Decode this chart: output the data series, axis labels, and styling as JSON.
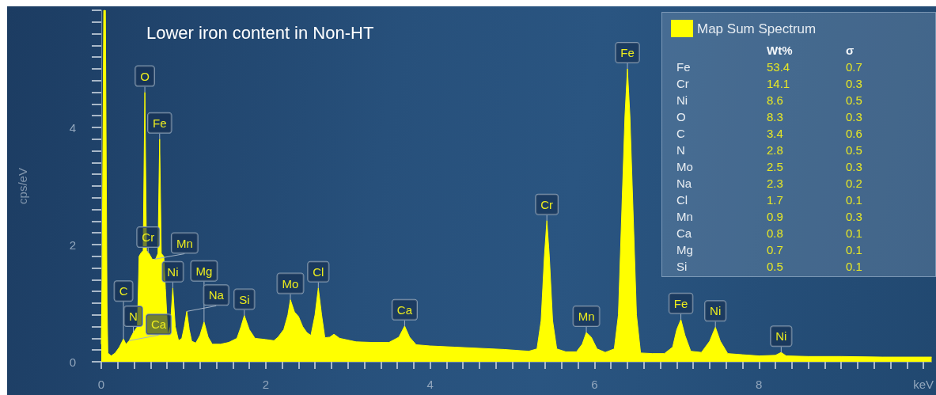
{
  "chart_data": {
    "type": "area",
    "title": "Lower iron content in Non-HT",
    "ylabel": "cps/eV",
    "series": [
      {
        "name": "Map Sum Spectrum",
        "color": "#ffff00",
        "x": [
          0,
          0.01,
          0.03,
          0.05,
          0.07,
          0.08,
          0.12,
          0.17,
          0.22,
          0.27,
          0.3,
          0.34,
          0.39,
          0.44,
          0.46,
          0.48,
          0.51,
          0.53,
          0.55,
          0.58,
          0.62,
          0.66,
          0.69,
          0.71,
          0.73,
          0.76,
          0.78,
          0.81,
          0.84,
          0.87,
          0.9,
          0.94,
          0.98,
          1.01,
          1.04,
          1.07,
          1.1,
          1.15,
          1.2,
          1.25,
          1.3,
          1.35,
          1.45,
          1.55,
          1.65,
          1.7,
          1.74,
          1.8,
          1.87,
          2,
          2.1,
          2.15,
          2.22,
          2.27,
          2.3,
          2.35,
          2.4,
          2.45,
          2.5,
          2.55,
          2.6,
          2.64,
          2.68,
          2.72,
          2.78,
          2.83,
          2.9,
          3.1,
          3.3,
          3.5,
          3.62,
          3.69,
          3.75,
          3.83,
          4,
          4.3,
          4.6,
          4.9,
          5.2,
          5.3,
          5.35,
          5.39,
          5.42,
          5.45,
          5.49,
          5.54,
          5.65,
          5.78,
          5.85,
          5.9,
          5.96,
          6.03,
          6.13,
          6.24,
          6.29,
          6.33,
          6.37,
          6.4,
          6.43,
          6.47,
          6.51,
          6.56,
          6.7,
          6.85,
          6.95,
          7,
          7.05,
          7.1,
          7.17,
          7.3,
          7.4,
          7.47,
          7.53,
          7.62,
          7.8,
          8,
          8.2,
          8.27,
          8.33,
          8.6,
          9,
          9.5,
          10,
          10.1
        ],
        "values": [
          0.3,
          1.4,
          6,
          6,
          1,
          0.15,
          0.1,
          0.15,
          0.25,
          0.39,
          0.3,
          0.36,
          0.5,
          0.6,
          1.8,
          1.85,
          1.9,
          4.6,
          1.9,
          1.85,
          1.75,
          1.75,
          1.85,
          3.8,
          1.85,
          1.8,
          1.25,
          0.45,
          0.6,
          1.26,
          0.6,
          0.36,
          0.4,
          0.6,
          0.86,
          0.55,
          0.35,
          0.32,
          0.45,
          0.68,
          0.42,
          0.3,
          0.3,
          0.33,
          0.4,
          0.6,
          0.79,
          0.55,
          0.4,
          0.38,
          0.36,
          0.42,
          0.55,
          0.8,
          1.06,
          0.85,
          0.77,
          0.6,
          0.5,
          0.45,
          0.8,
          1.26,
          0.8,
          0.41,
          0.42,
          0.47,
          0.4,
          0.34,
          0.33,
          0.33,
          0.42,
          0.61,
          0.42,
          0.29,
          0.27,
          0.25,
          0.23,
          0.21,
          0.18,
          0.22,
          0.7,
          1.8,
          2.41,
          1.8,
          0.7,
          0.22,
          0.17,
          0.17,
          0.3,
          0.5,
          0.42,
          0.22,
          0.16,
          0.22,
          0.8,
          2.5,
          4.2,
          5,
          4.2,
          2.5,
          0.8,
          0.15,
          0.14,
          0.14,
          0.25,
          0.55,
          0.72,
          0.45,
          0.18,
          0.16,
          0.35,
          0.59,
          0.35,
          0.14,
          0.12,
          0.1,
          0.11,
          0.16,
          0.1,
          0.09,
          0.09,
          0.08,
          0.08,
          0.08
        ]
      }
    ],
    "xlim": [
      0,
      10.1
    ],
    "xticks": [
      0,
      {
        "value": 0.2,
        "label": null
      },
      {
        "value": 0.4,
        "label": null
      },
      {
        "value": 0.6,
        "label": null
      },
      {
        "value": 0.8,
        "label": null
      },
      {
        "value": 1,
        "label": null
      },
      {
        "value": 1.2,
        "label": null
      },
      {
        "value": 1.4,
        "label": null
      },
      {
        "value": 1.6,
        "label": null
      },
      {
        "value": 1.8,
        "label": null
      },
      2,
      {
        "value": 2.2,
        "label": null
      },
      {
        "value": 2.4,
        "label": null
      },
      {
        "value": 2.6,
        "label": null
      },
      {
        "value": 2.8,
        "label": null
      },
      {
        "value": 3,
        "label": null
      },
      {
        "value": 3.2,
        "label": null
      },
      {
        "value": 3.4,
        "label": null
      },
      {
        "value": 3.6,
        "label": null
      },
      {
        "value": 3.8,
        "label": null
      },
      4,
      {
        "value": 4.2,
        "label": null
      },
      {
        "value": 4.4,
        "label": null
      },
      {
        "value": 4.6,
        "label": null
      },
      {
        "value": 4.8,
        "label": null
      },
      {
        "value": 5,
        "label": null
      },
      {
        "value": 5.2,
        "label": null
      },
      {
        "value": 5.4,
        "label": null
      },
      {
        "value": 5.6,
        "label": null
      },
      {
        "value": 5.8,
        "label": null
      },
      6,
      {
        "value": 6.2,
        "label": null
      },
      {
        "value": 6.4,
        "label": null
      },
      {
        "value": 6.6,
        "label": null
      },
      {
        "value": 6.8,
        "label": null
      },
      {
        "value": 7,
        "label": null
      },
      {
        "value": 7.2,
        "label": null
      },
      {
        "value": 7.4,
        "label": null
      },
      {
        "value": 7.6,
        "label": null
      },
      {
        "value": 7.8,
        "label": null
      },
      8,
      {
        "value": 8.2,
        "label": null
      },
      {
        "value": 8.4,
        "label": null
      },
      {
        "value": 8.6,
        "label": null
      },
      {
        "value": 8.8,
        "label": null
      },
      {
        "value": 9,
        "label": null
      },
      {
        "value": 9.2,
        "label": null
      },
      {
        "value": 9.4,
        "label": null
      },
      {
        "value": 9.6,
        "label": null
      },
      {
        "value": 9.8,
        "label": null
      },
      {
        "value": 10,
        "label": "keV"
      }
    ],
    "ylim": [
      0,
      6
    ],
    "yticks": [
      0,
      {
        "value": 0.2,
        "label": null
      },
      {
        "value": 0.4,
        "label": null
      },
      {
        "value": 0.6,
        "label": null
      },
      {
        "value": 0.8,
        "label": null
      },
      {
        "value": 1,
        "label": null
      },
      {
        "value": 1.2,
        "label": null
      },
      {
        "value": 1.4,
        "label": null
      },
      {
        "value": 1.6,
        "label": null
      },
      {
        "value": 1.8,
        "label": null
      },
      2,
      {
        "value": 2.2,
        "label": null
      },
      {
        "value": 2.4,
        "label": null
      },
      {
        "value": 2.6,
        "label": null
      },
      {
        "value": 2.8,
        "label": null
      },
      {
        "value": 3,
        "label": null
      },
      {
        "value": 3.2,
        "label": null
      },
      {
        "value": 3.4,
        "label": null
      },
      {
        "value": 3.6,
        "label": null
      },
      {
        "value": 3.8,
        "label": null
      },
      4,
      {
        "value": 4.2,
        "label": null
      },
      {
        "value": 4.4,
        "label": null
      },
      {
        "value": 4.6,
        "label": null
      },
      {
        "value": 4.8,
        "label": null
      },
      {
        "value": 5,
        "label": null
      },
      {
        "value": 5.2,
        "label": null
      },
      {
        "value": 5.4,
        "label": null
      },
      {
        "value": 5.6,
        "label": null
      },
      {
        "value": 5.8,
        "label": null
      },
      {
        "value": 6,
        "label": null
      }
    ],
    "legend": "top right",
    "marker": "none",
    "annotations": [
      {
        "text": "O",
        "x": 0.53,
        "y": 4.6
      },
      {
        "text": "Fe",
        "x": 0.71,
        "y": 3.8
      },
      {
        "text": "N",
        "x": 0.39,
        "y": 0.5
      },
      {
        "text": "Ni",
        "x": 0.87,
        "y": 1.26
      },
      {
        "text": "Cr",
        "x": 0.57,
        "y": 1.85
      },
      {
        "text": "Mn",
        "x": 0.64,
        "y": 1.75
      },
      {
        "text": "Na",
        "x": 1.04,
        "y": 0.86
      },
      {
        "text": "C",
        "x": 0.27,
        "y": 0.39
      },
      {
        "text": "Ca",
        "x": 0.34,
        "y": 0.36
      },
      {
        "text": "Mg",
        "x": 1.25,
        "y": 0.68
      },
      {
        "text": "Si",
        "x": 1.74,
        "y": 0.79
      },
      {
        "text": "Mo",
        "x": 2.3,
        "y": 1.06
      },
      {
        "text": "Cl",
        "x": 2.64,
        "y": 1.26
      },
      {
        "text": "Ca",
        "x": 3.69,
        "y": 0.61
      },
      {
        "text": "Cr",
        "x": 5.42,
        "y": 2.41
      },
      {
        "text": "Mn",
        "x": 5.9,
        "y": 0.5
      },
      {
        "text": "Fe",
        "x": 6.4,
        "y": 5
      },
      {
        "text": "Fe",
        "x": 7.05,
        "y": 0.72
      },
      {
        "text": "Ni",
        "x": 7.47,
        "y": 0.59
      },
      {
        "text": "Ni",
        "x": 8.27,
        "y": 0.16
      },
      "Wt%",
      "σ",
      "Fe",
      "53.4",
      "0.7",
      "Cr",
      "14.1",
      "0.3",
      "Ni",
      "8.6",
      "0.5",
      "O",
      "8.3",
      "0.3",
      "C",
      "3.4",
      "0.6",
      "N",
      "2.8",
      "0.5",
      "Mo",
      "2.5",
      "0.3",
      "Na",
      "2.3",
      "0.2",
      "Cl",
      "1.7",
      "0.1",
      "Mn",
      "0.9",
      "0.3",
      "Ca",
      "0.8",
      "0.1",
      "Mg",
      "0.7",
      "0.1",
      "Si",
      "0.5",
      "0.1"
    ]
  }
}
